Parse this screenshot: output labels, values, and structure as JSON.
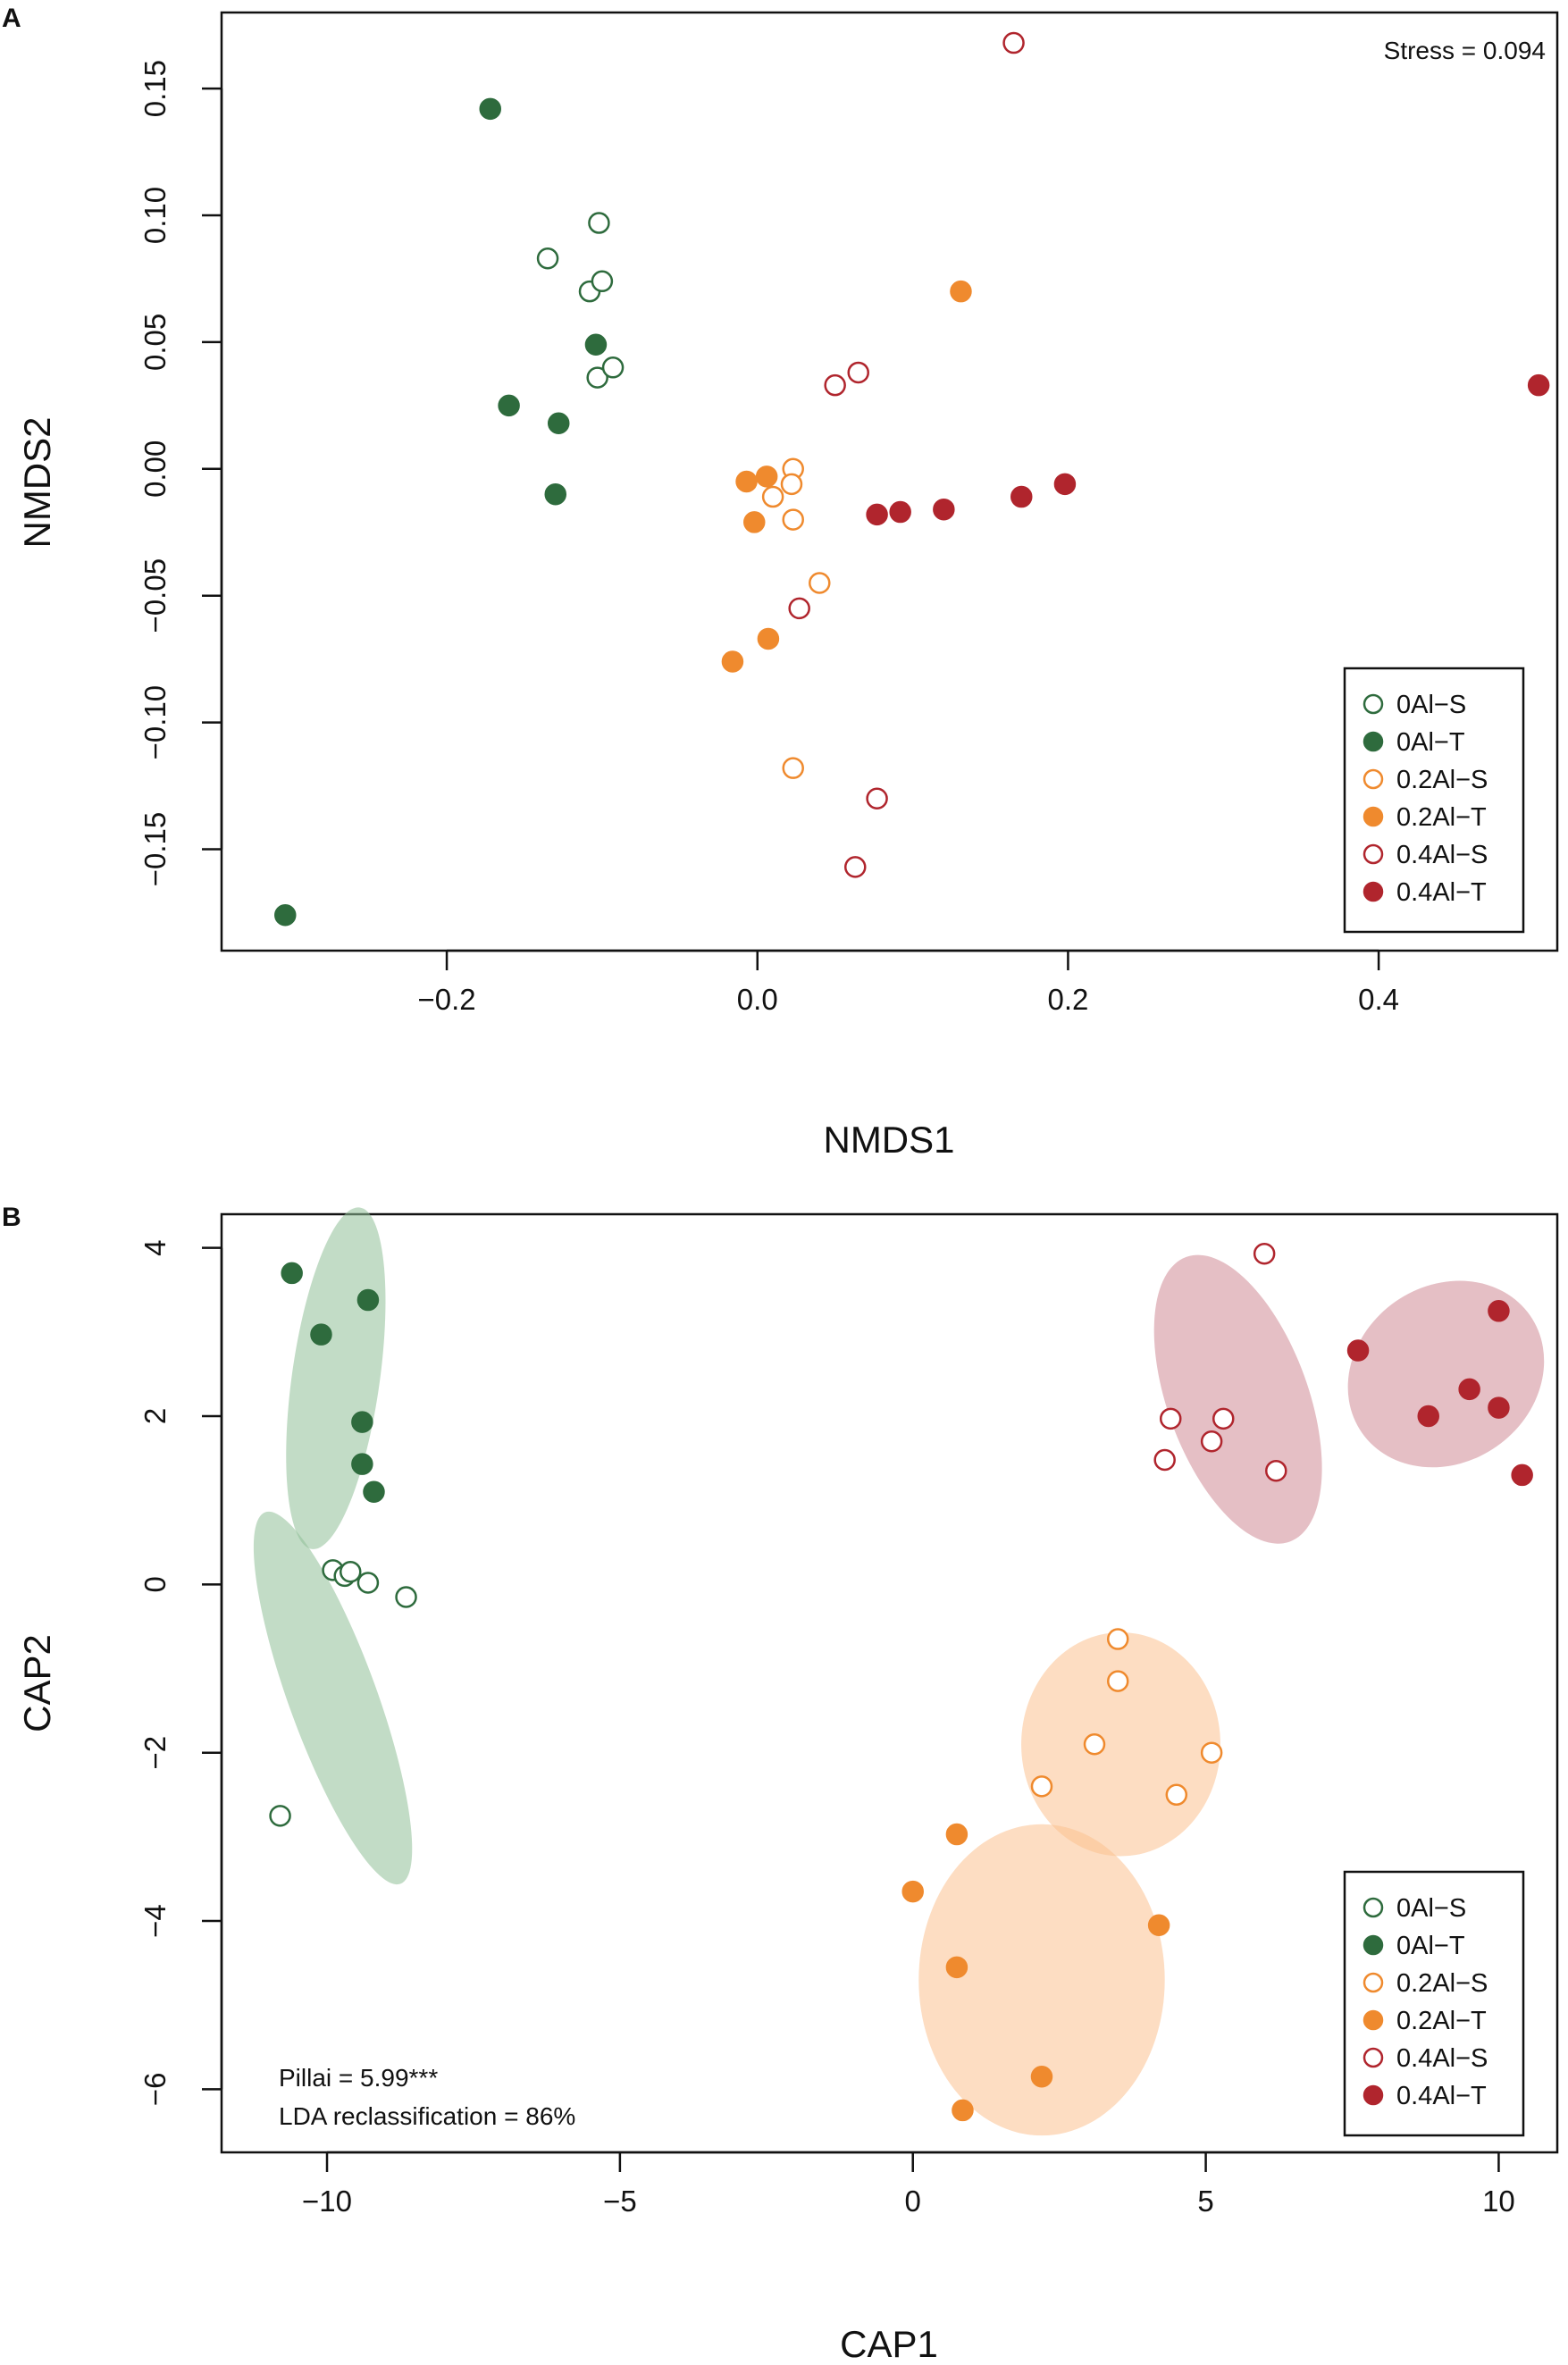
{
  "figure": {
    "panels": [
      "A",
      "B"
    ]
  },
  "colors": {
    "0Al": "#2e6b3d",
    "0.2Al": "#ef8a2e",
    "0.4Al": "#b0252d",
    "ellipse_0Al": "#8fbf98",
    "ellipse_0.2Al": "#fbc18f",
    "ellipse_0.4Al": "#d08a96"
  },
  "legend_entries": [
    {
      "label": "0Al−S",
      "group": "0Al",
      "filled": false
    },
    {
      "label": "0Al−T",
      "group": "0Al",
      "filled": true
    },
    {
      "label": "0.2Al−S",
      "group": "0.2Al",
      "filled": false
    },
    {
      "label": "0.2Al−T",
      "group": "0.2Al",
      "filled": true
    },
    {
      "label": "0.4Al−S",
      "group": "0.4Al",
      "filled": false
    },
    {
      "label": "0.4Al−T",
      "group": "0.4Al",
      "filled": true
    }
  ],
  "chart_data": [
    {
      "panel": "A",
      "type": "scatter",
      "title": "",
      "xlabel": "NMDS1",
      "ylabel": "NMDS2",
      "xlim": [
        -0.345,
        0.515
      ],
      "ylim": [
        -0.19,
        0.18
      ],
      "xticks": [
        -0.2,
        0.0,
        0.2,
        0.4
      ],
      "xtick_labels": [
        "−0.2",
        "0.0",
        "0.2",
        "0.4"
      ],
      "yticks": [
        -0.15,
        -0.1,
        -0.05,
        0.0,
        0.05,
        0.1,
        0.15
      ],
      "ytick_labels": [
        "−0.15",
        "−0.10",
        "−0.05",
        "0.00",
        "0.05",
        "0.10",
        "0.15"
      ],
      "grid": false,
      "legend_position": "bottom-right",
      "annotations": [
        "Stress = 0.094"
      ],
      "series": [
        {
          "name": "0Al−S",
          "points": [
            [
              -0.135,
              0.083
            ],
            [
              -0.102,
              0.097
            ],
            [
              -0.108,
              0.07
            ],
            [
              -0.1,
              0.074
            ],
            [
              -0.103,
              0.036
            ],
            [
              -0.093,
              0.04
            ]
          ]
        },
        {
          "name": "0Al−T",
          "points": [
            [
              -0.172,
              0.142
            ],
            [
              -0.104,
              0.049
            ],
            [
              -0.16,
              0.025
            ],
            [
              -0.128,
              0.018
            ],
            [
              -0.13,
              -0.01
            ],
            [
              -0.304,
              -0.176
            ]
          ]
        },
        {
          "name": "0.2Al−S",
          "points": [
            [
              0.023,
              0.0
            ],
            [
              0.022,
              -0.006
            ],
            [
              0.01,
              -0.011
            ],
            [
              0.023,
              -0.02
            ],
            [
              0.04,
              -0.045
            ],
            [
              0.023,
              -0.118
            ]
          ]
        },
        {
          "name": "0.2Al−T",
          "points": [
            [
              0.131,
              0.07
            ],
            [
              -0.007,
              -0.005
            ],
            [
              0.006,
              -0.003
            ],
            [
              -0.002,
              -0.021
            ],
            [
              -0.016,
              -0.076
            ],
            [
              0.007,
              -0.067
            ]
          ]
        },
        {
          "name": "0.4Al−S",
          "points": [
            [
              0.165,
              0.168
            ],
            [
              0.05,
              0.033
            ],
            [
              0.065,
              0.038
            ],
            [
              0.027,
              -0.055
            ],
            [
              0.077,
              -0.13
            ],
            [
              0.063,
              -0.157
            ]
          ]
        },
        {
          "name": "0.4Al−T",
          "points": [
            [
              0.503,
              0.033
            ],
            [
              0.077,
              -0.018
            ],
            [
              0.092,
              -0.017
            ],
            [
              0.12,
              -0.016
            ],
            [
              0.17,
              -0.011
            ],
            [
              0.198,
              -0.006
            ]
          ]
        }
      ]
    },
    {
      "panel": "B",
      "type": "scatter",
      "title": "",
      "xlabel": "CAP1",
      "ylabel": "CAP2",
      "xlim": [
        -11.8,
        11.0
      ],
      "ylim": [
        -6.75,
        4.4
      ],
      "xticks": [
        -10,
        -5,
        0,
        5,
        10
      ],
      "xtick_labels": [
        "−10",
        "−5",
        "0",
        "5",
        "10"
      ],
      "yticks": [
        -6,
        -4,
        -2,
        0,
        2,
        4
      ],
      "ytick_labels": [
        "−6",
        "−4",
        "−2",
        "0",
        "2",
        "4"
      ],
      "grid": false,
      "legend_position": "bottom-right",
      "annotations": [
        "Pillai = 5.99***",
        "LDA reclassification = 86%"
      ],
      "ellipses": [
        {
          "group": "0Al",
          "cx": -9.85,
          "cy": 2.45,
          "rx": 0.75,
          "ry": 2.05,
          "angle_deg": 8
        },
        {
          "group": "0Al",
          "cx": -9.9,
          "cy": -1.35,
          "rx": 0.75,
          "ry": 2.35,
          "angle_deg": -20
        },
        {
          "group": "0.2Al",
          "cx": 3.55,
          "cy": -1.9,
          "rx": 1.7,
          "ry": 1.33,
          "angle_deg": 0
        },
        {
          "group": "0.2Al",
          "cx": 2.2,
          "cy": -4.7,
          "rx": 2.1,
          "ry": 1.85,
          "angle_deg": 0
        },
        {
          "group": "0.4Al",
          "cx": 5.55,
          "cy": 2.2,
          "rx": 1.2,
          "ry": 1.8,
          "angle_deg": -20
        },
        {
          "group": "0.4Al",
          "cx": 9.1,
          "cy": 2.5,
          "rx": 1.75,
          "ry": 1.05,
          "angle_deg": -35
        }
      ],
      "series": [
        {
          "name": "0Al−S",
          "points": [
            [
              -9.9,
              0.17
            ],
            [
              -9.7,
              0.1
            ],
            [
              -9.6,
              0.15
            ],
            [
              -9.3,
              0.02
            ],
            [
              -8.65,
              -0.15
            ],
            [
              -10.8,
              -2.75
            ]
          ]
        },
        {
          "name": "0Al−T",
          "points": [
            [
              -10.6,
              3.7
            ],
            [
              -10.1,
              2.97
            ],
            [
              -9.3,
              3.38
            ],
            [
              -9.4,
              1.93
            ],
            [
              -9.4,
              1.43
            ],
            [
              -9.2,
              1.1
            ]
          ]
        },
        {
          "name": "0.2Al−S",
          "points": [
            [
              3.5,
              -0.65
            ],
            [
              3.5,
              -1.15
            ],
            [
              3.1,
              -1.9
            ],
            [
              5.1,
              -2.0
            ],
            [
              4.5,
              -2.5
            ],
            [
              2.2,
              -2.4
            ]
          ]
        },
        {
          "name": "0.2Al−T",
          "points": [
            [
              0.75,
              -2.97
            ],
            [
              0.0,
              -3.65
            ],
            [
              0.75,
              -4.55
            ],
            [
              4.2,
              -4.05
            ],
            [
              2.2,
              -5.85
            ],
            [
              0.85,
              -6.25
            ]
          ]
        },
        {
          "name": "0.4Al−S",
          "points": [
            [
              6.0,
              3.93
            ],
            [
              4.4,
              1.97
            ],
            [
              5.3,
              1.97
            ],
            [
              5.1,
              1.7
            ],
            [
              4.3,
              1.48
            ],
            [
              6.2,
              1.35
            ]
          ]
        },
        {
          "name": "0.4Al−T",
          "points": [
            [
              7.6,
              2.78
            ],
            [
              10.0,
              3.25
            ],
            [
              9.5,
              2.32
            ],
            [
              8.8,
              2.0
            ],
            [
              10.0,
              2.1
            ],
            [
              10.4,
              1.3
            ]
          ]
        }
      ]
    }
  ]
}
